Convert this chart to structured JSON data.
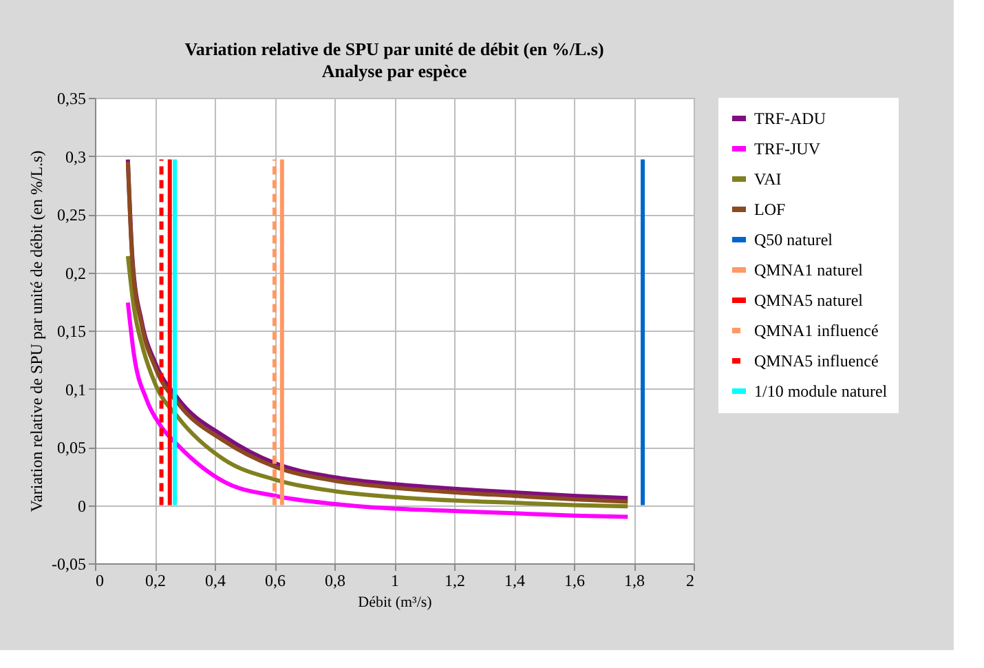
{
  "chart_data": {
    "type": "line",
    "title": "Variation relative de SPU par unité de débit (en %/L.s)",
    "subtitle": "Analyse par espèce",
    "xlabel": "Débit (m³/s)",
    "ylabel": "Variation relative de SPU par unité de débit (en %/L.s)",
    "xlim": [
      0,
      2
    ],
    "ylim": [
      -0.05,
      0.35
    ],
    "xticks": [
      0,
      {
        "value": 0.2,
        "label": "0,2"
      },
      {
        "value": 0.4,
        "label": "0,4"
      },
      {
        "value": 0.6,
        "label": "0,6"
      },
      {
        "value": 0.8,
        "label": "0,8"
      },
      1,
      {
        "value": 1.2,
        "label": "1,2"
      },
      {
        "value": 1.4,
        "label": "1,4"
      },
      {
        "value": 1.6,
        "label": "1,6"
      },
      {
        "value": 1.8,
        "label": "1,8"
      },
      2
    ],
    "yticks": [
      {
        "value": -0.05,
        "label": "-0,05"
      },
      0,
      {
        "value": 0.05,
        "label": "0,05"
      },
      {
        "value": 0.1,
        "label": "0,1"
      },
      {
        "value": 0.15,
        "label": "0,15"
      },
      {
        "value": 0.2,
        "label": "0,2"
      },
      {
        "value": 0.25,
        "label": "0,25"
      },
      {
        "value": 0.3,
        "label": "0,3"
      },
      {
        "value": 0.35,
        "label": "0,35"
      }
    ],
    "grid": true,
    "legend": "right",
    "marker": "none",
    "series": [
      {
        "name": "TRF-ADU",
        "color": "#7f0f7e",
        "line_style": "solid",
        "x": [
          0.11,
          0.126,
          0.156,
          0.202,
          0.279,
          0.432,
          0.601,
          0.8,
          1.0,
          1.2,
          1.4,
          1.6,
          1.78
        ],
        "values": [
          0.297,
          0.209,
          0.158,
          0.122,
          0.091,
          0.059,
          0.036,
          0.024,
          0.018,
          0.014,
          0.011,
          0.008,
          0.006
        ]
      },
      {
        "name": "TRF-JUV",
        "color": "#ff00ff",
        "line_style": "solid",
        "x": [
          0.11,
          0.13,
          0.172,
          0.22,
          0.279,
          0.432,
          0.601,
          0.8,
          1.0,
          1.2,
          1.4,
          1.6,
          1.78
        ],
        "values": [
          0.174,
          0.13,
          0.091,
          0.068,
          0.051,
          0.02,
          0.008,
          0.001,
          -0.003,
          -0.005,
          -0.007,
          -0.009,
          -0.01
        ]
      },
      {
        "name": "VAI",
        "color": "#808020",
        "line_style": "solid",
        "x": [
          0.11,
          0.13,
          0.16,
          0.2,
          0.279,
          0.432,
          0.601,
          0.8,
          1.0,
          1.2,
          1.4,
          1.6,
          1.78
        ],
        "values": [
          0.214,
          0.17,
          0.135,
          0.105,
          0.075,
          0.039,
          0.022,
          0.012,
          0.007,
          0.004,
          0.002,
          0.0,
          -0.001
        ]
      },
      {
        "name": "LOF",
        "color": "#8b4a1f",
        "line_style": "solid",
        "x": [
          0.11,
          0.126,
          0.156,
          0.202,
          0.279,
          0.432,
          0.601,
          0.8,
          1.0,
          1.2,
          1.4,
          1.6,
          1.78
        ],
        "values": [
          0.295,
          0.206,
          0.155,
          0.118,
          0.087,
          0.055,
          0.033,
          0.021,
          0.015,
          0.011,
          0.008,
          0.005,
          0.003
        ]
      },
      {
        "name": "Q50 naturel",
        "color": "#0066cc",
        "line_style": "solid",
        "x": [
          1.83,
          1.83
        ],
        "values": [
          0,
          0.297
        ]
      },
      {
        "name": "QMNA1 naturel",
        "color": "#ff9966",
        "line_style": "solid",
        "x": [
          0.625,
          0.625
        ],
        "values": [
          0,
          0.297
        ]
      },
      {
        "name": "QMNA5 naturel",
        "color": "#ff0000",
        "line_style": "solid",
        "x": [
          0.25,
          0.25
        ],
        "values": [
          0,
          0.297
        ]
      },
      {
        "name": "QMNA1 influencé",
        "color": "#ff9966",
        "line_style": "dashed",
        "x": [
          0.6,
          0.6
        ],
        "values": [
          0,
          0.297
        ]
      },
      {
        "name": "QMNA5 influencé",
        "color": "#ff0000",
        "line_style": "dashed",
        "x": [
          0.222,
          0.222
        ],
        "values": [
          0,
          0.297
        ]
      },
      {
        "name": "1/10 module naturel",
        "color": "#00ffff",
        "line_style": "solid",
        "x": [
          0.267,
          0.267
        ],
        "values": [
          0,
          0.297
        ]
      }
    ]
  }
}
